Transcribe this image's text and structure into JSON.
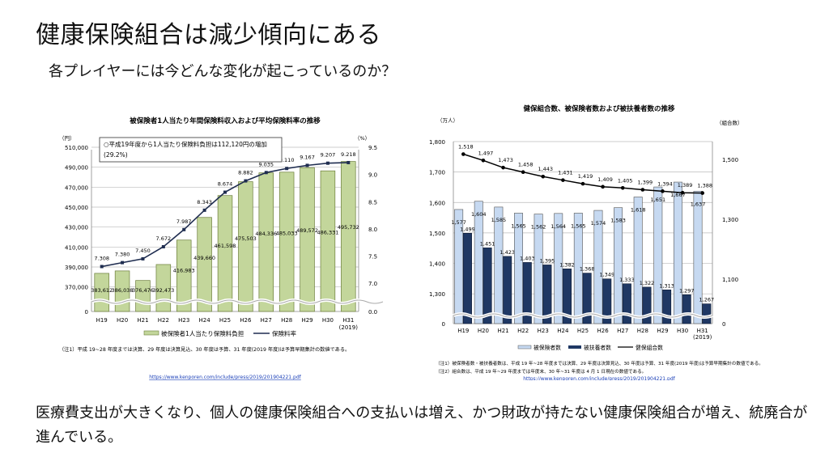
{
  "slide": {
    "title": "健康保険組合は減少傾向にある",
    "subtitle": "各プレイヤーには今どんな変化が起こっているのか？",
    "conclusion": "医療費支出が大きくなり、個人の健康保険組合への支払いは増え、かつ財政が持たない健康保険組合が増え、統廃合が進んでいる。"
  },
  "chart_data": [
    {
      "type": "bar",
      "title": "被保険者1人当たり年間保険料収入および平均保険料率の推移",
      "categories": [
        "H19",
        "H20",
        "H21",
        "H22",
        "H23",
        "H24",
        "H25",
        "H26",
        "H27",
        "H28",
        "H29",
        "H30",
        "H31"
      ],
      "category_sublabels": {
        "H31": "(2019)"
      },
      "ylabel": "（円）",
      "y2label": "（%）",
      "ylim": [
        0,
        510000
      ],
      "y_break_range": [
        0,
        360000
      ],
      "yticks": [
        "0",
        "370,000",
        "390,000",
        "410,000",
        "430,000",
        "450,000",
        "470,000",
        "490,000",
        "510,000"
      ],
      "y2lim": [
        0.0,
        9.5
      ],
      "y2ticks": [
        "0.0",
        "7.0",
        "7.5",
        "8.0",
        "8.5",
        "9.0",
        "9.5"
      ],
      "grid": true,
      "series": [
        {
          "name": "被保険者1人当たり保険料負担",
          "kind": "bar",
          "axis": "left",
          "color": "#c3d69b",
          "values": [
            383612,
            386038,
            376476,
            392473,
            416983,
            439660,
            461598,
            475503,
            484336,
            485033,
            489572,
            486331,
            495732
          ],
          "labels": [
            "383,612",
            "386,038",
            "376,476",
            "392,473",
            "416,983",
            "439,660",
            "461,598",
            "475,503",
            "484,336",
            "485,033",
            "489,572",
            "486,331",
            "495,732"
          ]
        },
        {
          "name": "保険料率",
          "kind": "line",
          "axis": "right",
          "color": "#1f2d50",
          "values": [
            7.308,
            7.38,
            7.45,
            7.672,
            7.987,
            8.343,
            8.674,
            8.882,
            9.035,
            9.11,
            9.167,
            9.207,
            9.218
          ],
          "labels": [
            "7.308",
            "7.380",
            "7.450",
            "7.672",
            "7.987",
            "8.343",
            "8.674",
            "8.882",
            "9.035",
            "9.110",
            "9.167",
            "9.207",
            "9.218"
          ]
        }
      ],
      "annotation": [
        "○平成19年度から1人当たり保険料負担は112,120円の増加",
        "(29.2%)"
      ],
      "legend": {
        "placement": "bottom",
        "items": [
          "被保険者1人当たり保険料負担",
          "保険料率"
        ]
      },
      "note": "（注1）平成 19~28 年度までは決算、29 年度は決算見込、30 年度は予算、31 年度(2019 年度)は予算早期集計の数値である。",
      "source": "https://www.kenporen.com/include/press/2019/201904221.pdf"
    },
    {
      "type": "bar",
      "title": "健保組合数、被保険者数および被扶養者数の推移",
      "categories": [
        "H19",
        "H20",
        "H21",
        "H22",
        "H23",
        "H24",
        "H25",
        "H26",
        "H27",
        "H28",
        "H29",
        "H30",
        "H31"
      ],
      "category_sublabels": {
        "H31": "(2019)"
      },
      "ylabel": "（万人）",
      "y2label": "（組合数）",
      "ylim": [
        0,
        1800
      ],
      "y_break_range": [
        0,
        1250
      ],
      "yticks": [
        "0",
        "1,300",
        "1,400",
        "1,500",
        "1,600",
        "1,700",
        "1,800"
      ],
      "y2lim": [
        0,
        1500
      ],
      "y2_break_range": [
        0,
        1000
      ],
      "y2ticks": [
        "0",
        "1,100",
        "1,300",
        "1,500"
      ],
      "grid": true,
      "series": [
        {
          "name": "被保険者数",
          "kind": "bar",
          "axis": "left",
          "color": "#c6d9f1",
          "values": [
            1577,
            1604,
            1585,
            1565,
            1562,
            1564,
            1565,
            1574,
            1583,
            1618,
            1651,
            1667,
            1637
          ],
          "labels": [
            "1,577",
            "1,604",
            "1,585",
            "1,565",
            "1,562",
            "1,564",
            "1,565",
            "1,574",
            "1,583",
            "1,618",
            "1,651",
            "1,667",
            "1,637"
          ]
        },
        {
          "name": "被扶養者数",
          "kind": "bar",
          "axis": "left",
          "color": "#1f3864",
          "values": [
            1499,
            1451,
            1423,
            1403,
            1395,
            1382,
            1368,
            1349,
            1333,
            1322,
            1313,
            1297,
            1267
          ],
          "labels": [
            "1,499",
            "1,451",
            "1,423",
            "1,403",
            "1,395",
            "1,382",
            "1,368",
            "1,349",
            "1,333",
            "1,322",
            "1,313",
            "1,297",
            "1,267"
          ]
        },
        {
          "name": "健保組合数",
          "kind": "line",
          "axis": "right",
          "color": "#000000",
          "values": [
            1518,
            1497,
            1473,
            1458,
            1443,
            1431,
            1419,
            1409,
            1405,
            1399,
            1394,
            1389,
            1388
          ],
          "labels": [
            "1,518",
            "1,497",
            "1,473",
            "1,458",
            "1,443",
            "1,431",
            "1,419",
            "1,409",
            "1,405",
            "1,399",
            "1,394",
            "1,389",
            "1,388"
          ]
        }
      ],
      "legend": {
        "placement": "bottom",
        "items": [
          "被保険者数",
          "被扶養者数",
          "健保組合数"
        ]
      },
      "notes": [
        "（注1）被保険者数・被扶養者数は、平成 19 年~28 年度までは決算、29 年度は決算見込、30 年度は予算、31 年度(2019 年度)は予算早期集計の数値である。",
        "（注2）組合数は、平成 19 年~29 年度までは年度末、30 年~31 年度は 4 月 1 日現在の数値である。"
      ],
      "source": "https://www.kenporen.com/include/press/2019/201904221.pdf"
    }
  ]
}
